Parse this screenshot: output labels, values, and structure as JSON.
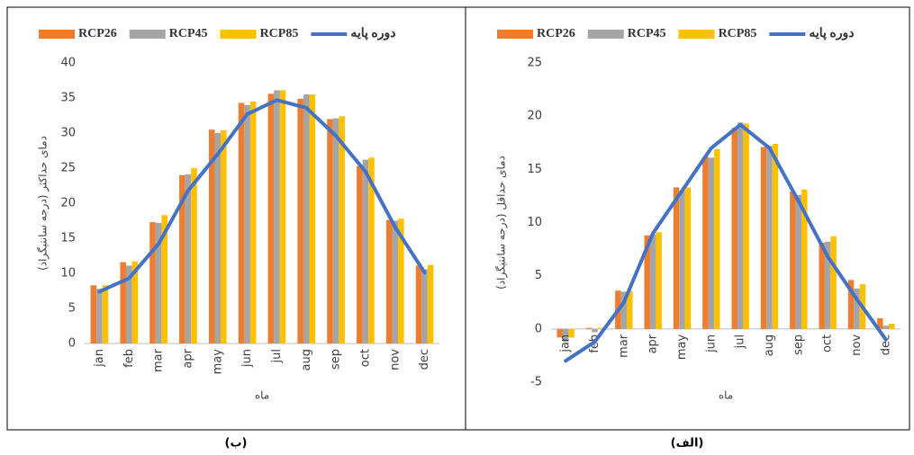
{
  "chart_data": [
    {
      "type": "bar",
      "caption": "(ب)",
      "ylabel": "دمای حداکثر (درجه سانتیگراد)",
      "xlabel": "ماه",
      "categories": [
        "jan",
        "feb",
        "mar",
        "apr",
        "may",
        "jun",
        "jul",
        "aug",
        "sep",
        "oct",
        "nov",
        "dec"
      ],
      "ylim": [
        0,
        40
      ],
      "yticks": [
        0,
        5,
        10,
        15,
        20,
        25,
        30,
        35,
        40
      ],
      "grid": false,
      "series": [
        {
          "name": "RCP26",
          "color": "#ED7D31",
          "values": [
            8.3,
            11.6,
            17.3,
            24.0,
            30.5,
            34.3,
            35.6,
            34.9,
            32.0,
            25.3,
            17.6,
            11.1
          ]
        },
        {
          "name": "RCP45",
          "color": "#A5A5A5",
          "values": [
            7.8,
            11.1,
            17.2,
            24.1,
            30.0,
            34.0,
            36.1,
            35.5,
            32.1,
            26.2,
            17.5,
            10.6
          ]
        },
        {
          "name": "RCP85",
          "color": "#FFC000",
          "values": [
            8.3,
            11.7,
            18.3,
            25.0,
            30.4,
            34.5,
            36.1,
            35.5,
            32.4,
            26.5,
            17.8,
            11.2
          ]
        },
        {
          "name": "دوره پایه",
          "color": "#4472C4",
          "type": "line",
          "values": [
            7.4,
            9.3,
            14.2,
            21.8,
            27.0,
            32.7,
            34.7,
            33.6,
            29.6,
            24.5,
            16.6,
            10.1
          ]
        }
      ]
    },
    {
      "type": "bar",
      "caption": "(الف)",
      "ylabel": "دمای حداقل (درجه سانتیگراد)",
      "xlabel": "ماه",
      "categories": [
        "jan",
        "feb",
        "mar",
        "apr",
        "may",
        "jun",
        "jul",
        "aug",
        "sep",
        "oct",
        "nov",
        "dec"
      ],
      "ylim": [
        -5,
        25
      ],
      "yticks": [
        -5,
        0,
        5,
        10,
        15,
        20,
        25
      ],
      "grid": false,
      "series": [
        {
          "name": "RCP26",
          "color": "#ED7D31",
          "values": [
            -0.8,
            0.1,
            3.6,
            8.8,
            13.3,
            16.2,
            18.9,
            17.1,
            12.9,
            8.1,
            4.6,
            1.0
          ]
        },
        {
          "name": "RCP45",
          "color": "#A5A5A5",
          "values": [
            -1.2,
            -0.3,
            3.5,
            8.9,
            13.0,
            16.1,
            19.4,
            17.2,
            12.6,
            8.2,
            3.8,
            0.3
          ]
        },
        {
          "name": "RCP85",
          "color": "#FFC000",
          "values": [
            -0.8,
            0.1,
            3.6,
            9.1,
            13.3,
            16.9,
            19.3,
            17.4,
            13.1,
            8.7,
            4.2,
            0.5
          ]
        },
        {
          "name": "دوره پایه",
          "color": "#4472C4",
          "type": "line",
          "values": [
            -3.0,
            -1.2,
            2.5,
            9.0,
            13.0,
            17.0,
            19.2,
            17.0,
            12.0,
            6.8,
            2.8,
            -1.0
          ]
        }
      ]
    }
  ]
}
